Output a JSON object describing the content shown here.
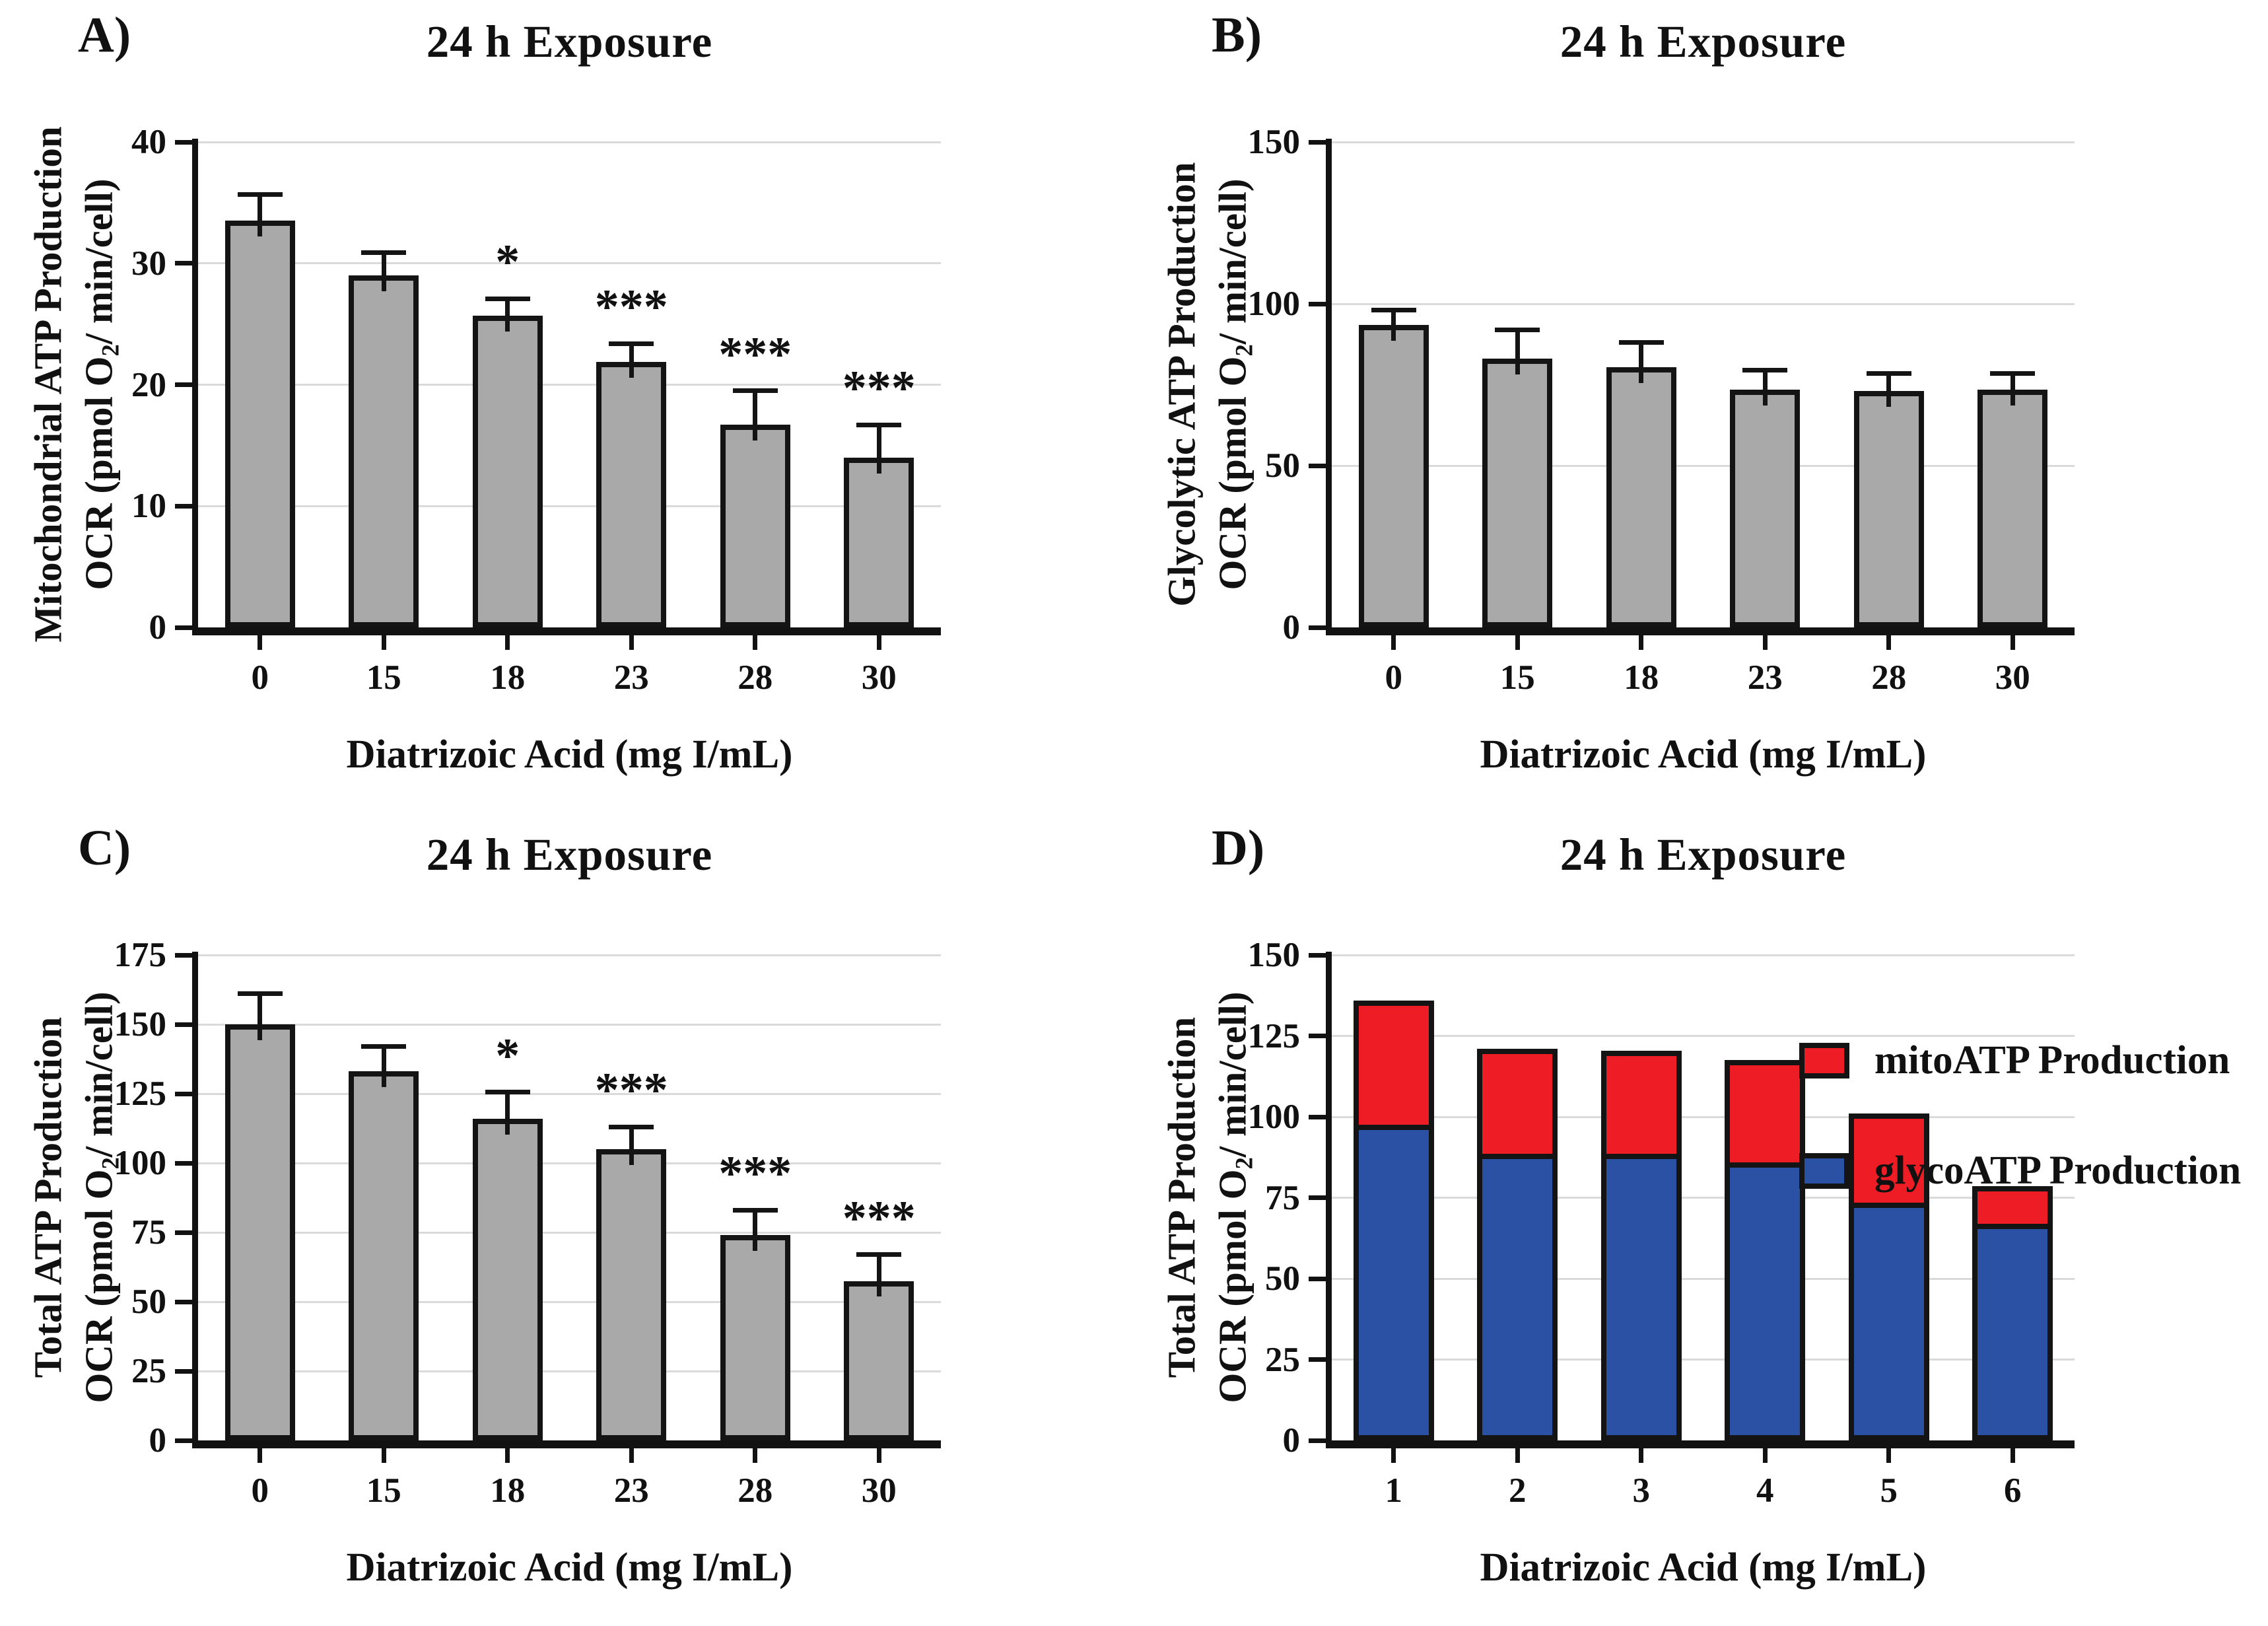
{
  "figure_title": "24 h Exposure ATP production figure",
  "colors": {
    "bar_gray": "#A9A9A9",
    "bar_border": "#141414",
    "mito_red": "#EE1C25",
    "glyco_blue": "#2B51A5",
    "gridline": "#DADADA",
    "axis": "#121212",
    "text": "#111111",
    "background": "#ffffff"
  },
  "chart_data": [
    {
      "panel_label": "A)",
      "type": "bar",
      "title": "24 h Exposure",
      "ylabel_line1": "Mitochondrial ATP Production",
      "ylabel_line2": {
        "pre": "OCR (pmol O",
        "sub": "2",
        "post": "/ min/cell)"
      },
      "xlabel": "Diatrizoic Acid (mg I/mL)",
      "categories": [
        "0",
        "15",
        "18",
        "23",
        "28",
        "30"
      ],
      "values": [
        33.5,
        29.0,
        25.7,
        21.9,
        16.7,
        14.0
      ],
      "errors": [
        2.2,
        1.9,
        1.4,
        1.5,
        2.8,
        2.7
      ],
      "significance": [
        "",
        "",
        "*",
        "***",
        "***",
        "***"
      ],
      "ylim": [
        0,
        40
      ],
      "yticks": [
        0,
        10,
        20,
        30,
        40
      ],
      "grid": "horizontal",
      "legend": null,
      "bar_color": "#A9A9A9"
    },
    {
      "panel_label": "B)",
      "type": "bar",
      "title": "24 h Exposure",
      "ylabel_line1": "Glycolytic ATP Production",
      "ylabel_line2": {
        "pre": "OCR (pmol O",
        "sub": "2",
        "post": "/ min/cell)"
      },
      "xlabel": "Diatrizoic Acid (mg I/mL)",
      "categories": [
        "0",
        "15",
        "18",
        "23",
        "28",
        "30"
      ],
      "values": [
        93.5,
        83.0,
        80.5,
        73.5,
        73.0,
        73.5
      ],
      "errors": [
        4.5,
        9.0,
        7.5,
        6.0,
        5.5,
        5.0
      ],
      "significance": [
        "",
        "",
        "",
        "",
        "",
        ""
      ],
      "ylim": [
        0,
        150
      ],
      "yticks": [
        0,
        50,
        100,
        150
      ],
      "grid": "horizontal",
      "legend": null,
      "bar_color": "#A9A9A9"
    },
    {
      "panel_label": "C)",
      "type": "bar",
      "title": "24 h Exposure",
      "ylabel_line1": "Total ATP Production",
      "ylabel_line2": {
        "pre": "OCR (pmol O",
        "sub": "2",
        "post": "/ min/cell)"
      },
      "xlabel": "Diatrizoic Acid (mg I/mL)",
      "categories": [
        "0",
        "15",
        "18",
        "23",
        "28",
        "30"
      ],
      "values": [
        150.0,
        133.0,
        116.0,
        105.0,
        74.0,
        57.5
      ],
      "errors": [
        11.0,
        9.0,
        9.5,
        8.0,
        9.0,
        9.5
      ],
      "significance": [
        "",
        "",
        "*",
        "***",
        "***",
        "***"
      ],
      "ylim": [
        0,
        175
      ],
      "yticks": [
        0,
        25,
        50,
        75,
        100,
        125,
        150,
        175
      ],
      "grid": "horizontal",
      "legend": null,
      "bar_color": "#A9A9A9"
    },
    {
      "panel_label": "D)",
      "type": "stacked-bar",
      "title": "24 h Exposure",
      "ylabel_line1": "Total ATP Production",
      "ylabel_line2": {
        "pre": "OCR (pmol O",
        "sub": "2",
        "post": "/ min/cell)"
      },
      "xlabel": "Diatrizoic Acid (mg I/mL)",
      "categories": [
        "1",
        "2",
        "3",
        "4",
        "5",
        "6"
      ],
      "series": [
        {
          "name": "mitoATP Production",
          "color": "#EE1C25",
          "values": [
            38.5,
            32.5,
            32.0,
            31.5,
            27.5,
            11.5
          ]
        },
        {
          "name": "glycoATP Production",
          "color": "#2B51A5",
          "values": [
            97.5,
            88.5,
            88.5,
            86.0,
            73.5,
            67.0
          ]
        }
      ],
      "significance": [
        "",
        "",
        "",
        "",
        "",
        ""
      ],
      "ylim": [
        0,
        150
      ],
      "yticks": [
        0,
        25,
        50,
        75,
        100,
        125,
        150
      ],
      "grid": "horizontal",
      "legend_position": "top-right"
    }
  ]
}
